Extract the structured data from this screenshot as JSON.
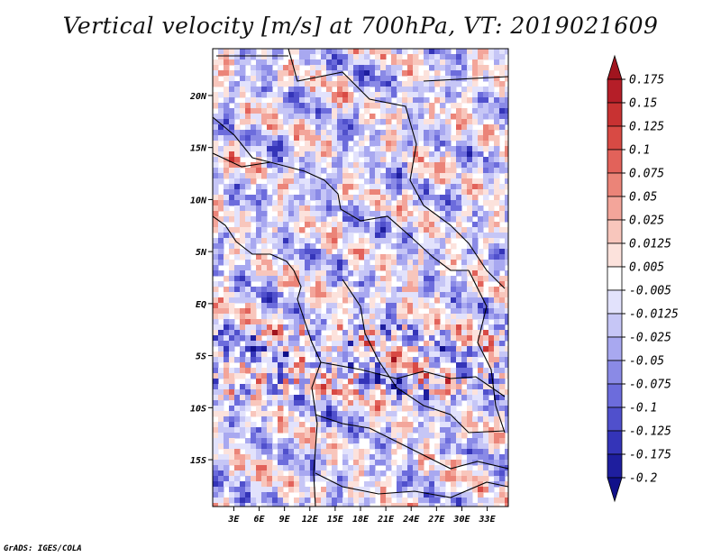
{
  "chart_data": {
    "type": "heatmap",
    "title": "Vertical velocity [m/s] at 700hPa, VT: 2019021609",
    "x_ticks": [
      "3E",
      "6E",
      "9E",
      "12E",
      "15E",
      "18E",
      "21E",
      "24E",
      "27E",
      "30E",
      "33E"
    ],
    "x_tick_values": [
      3,
      6,
      9,
      12,
      15,
      18,
      21,
      24,
      27,
      30,
      33
    ],
    "y_ticks": [
      "20N",
      "15N",
      "10N",
      "5N",
      "EQ",
      "5S",
      "10S",
      "15S"
    ],
    "y_tick_values": [
      20,
      15,
      10,
      5,
      0,
      -5,
      -10,
      -15
    ],
    "xlim": [
      0.5,
      35.5
    ],
    "ylim": [
      -19.5,
      24.5
    ],
    "colorbar": {
      "levels": [
        "0.175",
        "0.15",
        "0.125",
        "0.1",
        "0.075",
        "0.05",
        "0.025",
        "0.0125",
        "0.005",
        "-0.005",
        "-0.0125",
        "-0.025",
        "-0.05",
        "-0.075",
        "-0.1",
        "-0.125",
        "-0.175",
        "-0.2"
      ],
      "colors_top_to_bottom": [
        "#a0141e",
        "#b51e28",
        "#c83232",
        "#d84a44",
        "#e2625a",
        "#eb8478",
        "#f3a59a",
        "#f8c6bc",
        "#fce2dc",
        "#ffffff",
        "#e2e2fc",
        "#c6c6f6",
        "#a8a8f0",
        "#8a8ae6",
        "#6c6cdc",
        "#5050cc",
        "#3434b8",
        "#1e1e9e",
        "#10108a"
      ],
      "position": "right"
    }
  },
  "footer": "GrADS: IGES/COLA"
}
